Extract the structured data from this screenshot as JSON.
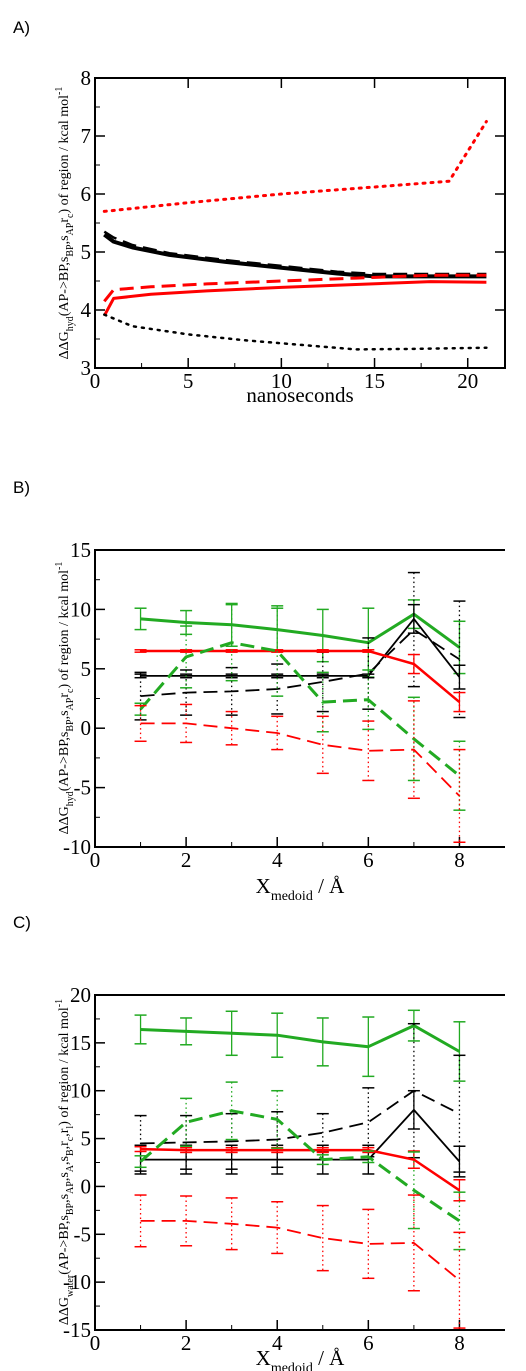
{
  "panels": [
    {
      "label": "A)"
    },
    {
      "label": "B)"
    },
    {
      "label": "C)"
    }
  ],
  "chart_data": [
    {
      "type": "line",
      "panel": "A)",
      "ylabel_parts": [
        {
          "t": "ΔΔG"
        },
        {
          "t": "hyd",
          "sub": true
        },
        {
          "t": "(AP->BP,s"
        },
        {
          "t": "BP",
          "sub": true
        },
        {
          "t": ",s"
        },
        {
          "t": "AP",
          "sub": true
        },
        {
          "t": "r"
        },
        {
          "t": "c",
          "sub": true
        },
        {
          "t": ") of region / kcal mol"
        },
        {
          "t": "-1",
          "sup": true
        }
      ],
      "xlabel_parts": [
        {
          "t": "nanoseconds"
        }
      ],
      "xlim": [
        0,
        22
      ],
      "ylim": [
        3,
        8
      ],
      "xticks": [
        0,
        5,
        10,
        15,
        20
      ],
      "yticks": [
        3,
        4,
        5,
        6,
        7,
        8
      ],
      "series": [
        {
          "color": "#ff0000",
          "dash": "dot",
          "width": 3,
          "x": [
            0.5,
            5,
            10,
            15,
            19,
            21
          ],
          "y": [
            5.7,
            5.85,
            6.0,
            6.12,
            6.22,
            7.25
          ]
        },
        {
          "color": "#000000",
          "dash": "solid",
          "width": 4,
          "x": [
            0.5,
            1,
            2,
            4,
            7,
            10,
            13,
            15,
            18,
            21
          ],
          "y": [
            5.3,
            5.18,
            5.08,
            4.95,
            4.83,
            4.73,
            4.63,
            4.58,
            4.58,
            4.58
          ]
        },
        {
          "color": "#000000",
          "dash": "dash",
          "width": 2.5,
          "x": [
            0.5,
            1,
            2,
            4,
            7,
            10,
            13,
            15,
            18,
            21
          ],
          "y": [
            5.35,
            5.25,
            5.12,
            4.98,
            4.86,
            4.76,
            4.66,
            4.62,
            4.62,
            4.62
          ]
        },
        {
          "color": "#ff0000",
          "dash": "dash",
          "width": 3,
          "x": [
            0.5,
            1,
            3,
            6,
            10,
            14,
            18,
            21
          ],
          "y": [
            4.15,
            4.35,
            4.4,
            4.45,
            4.5,
            4.55,
            4.6,
            4.6
          ]
        },
        {
          "color": "#ff0000",
          "dash": "solid",
          "width": 3,
          "x": [
            0.5,
            1,
            3,
            6,
            10,
            14,
            18,
            21
          ],
          "y": [
            3.9,
            4.2,
            4.27,
            4.33,
            4.39,
            4.44,
            4.49,
            4.48
          ]
        },
        {
          "color": "#000000",
          "dash": "dot",
          "width": 2.5,
          "x": [
            0.5,
            2,
            5,
            8,
            11,
            14,
            17,
            21
          ],
          "y": [
            3.92,
            3.72,
            3.58,
            3.48,
            3.4,
            3.32,
            3.33,
            3.35
          ]
        }
      ]
    },
    {
      "type": "line",
      "panel": "B)",
      "ylabel_parts": [
        {
          "t": "ΔΔG"
        },
        {
          "t": "hyd",
          "sub": true
        },
        {
          "t": "(AP->BP,s"
        },
        {
          "t": "BP",
          "sub": true
        },
        {
          "t": ",s"
        },
        {
          "t": "AP",
          "sub": true
        },
        {
          "t": "r"
        },
        {
          "t": "c",
          "sub": true
        },
        {
          "t": ") of region / kcal mol"
        },
        {
          "t": "-1",
          "sup": true
        }
      ],
      "xlabel_parts": [
        {
          "t": "X"
        },
        {
          "t": "medoid",
          "sub": true
        },
        {
          "t": " / Å"
        }
      ],
      "xlim": [
        0,
        9
      ],
      "ylim": [
        -10,
        15
      ],
      "xticks": [
        0,
        2,
        4,
        6,
        8
      ],
      "yticks": [
        -10,
        -5,
        0,
        5,
        10,
        15
      ],
      "series": [
        {
          "color": "#22aa22",
          "dash": "solid",
          "width": 3,
          "x": [
            1,
            2,
            3,
            4,
            5,
            6,
            7,
            8
          ],
          "y": [
            9.2,
            8.9,
            8.7,
            8.3,
            7.8,
            7.2,
            9.6,
            6.8
          ],
          "err": [
            0.9,
            1.0,
            1.8,
            1.8,
            2.2,
            2.9,
            1.2,
            2.2
          ],
          "err_dash": "solid"
        },
        {
          "color": "#000000",
          "dash": "solid",
          "width": 1.8,
          "x": [
            1,
            2,
            3,
            4,
            5,
            6,
            7,
            8
          ],
          "y": [
            4.4,
            4.4,
            4.4,
            4.4,
            4.4,
            4.4,
            9.2,
            4.3
          ],
          "err": [
            0.15,
            0.15,
            0.15,
            0.15,
            0.15,
            0.15,
            1.2,
            1.0
          ],
          "err_dash": "solid"
        },
        {
          "color": "#000000",
          "dash": "dash",
          "width": 1.8,
          "x": [
            1,
            2,
            3,
            4,
            5,
            6,
            7,
            8
          ],
          "y": [
            2.7,
            3.0,
            3.1,
            3.3,
            3.9,
            4.6,
            8.3,
            5.8
          ],
          "err": [
            2.0,
            1.9,
            2.0,
            2.1,
            2.5,
            3.0,
            4.8,
            4.9
          ],
          "err_dash": "dot"
        },
        {
          "color": "#ff0000",
          "dash": "solid",
          "width": 2.5,
          "x": [
            1,
            2,
            3,
            4,
            5,
            6,
            7,
            8
          ],
          "y": [
            6.5,
            6.5,
            6.5,
            6.5,
            6.5,
            6.5,
            5.4,
            2.2
          ],
          "err": [
            0.1,
            0.1,
            0.1,
            0.1,
            0.1,
            0.1,
            0.8,
            0.8
          ],
          "err_dash": "solid"
        },
        {
          "color": "#22aa22",
          "dash": "dash",
          "width": 3,
          "x": [
            1,
            2,
            3,
            4,
            5,
            6,
            7,
            8
          ],
          "y": [
            1.6,
            6.0,
            7.2,
            6.5,
            2.2,
            2.4,
            -0.9,
            -4.0
          ],
          "err": [
            0.5,
            2.6,
            3.2,
            3.8,
            2.5,
            2.5,
            3.5,
            2.9
          ],
          "err_dash": "dot"
        },
        {
          "color": "#ff0000",
          "dash": "dash",
          "width": 1.8,
          "x": [
            1,
            2,
            3,
            4,
            5,
            6,
            7,
            8
          ],
          "y": [
            0.4,
            0.4,
            0.0,
            -0.4,
            -1.4,
            -1.9,
            -1.8,
            -5.7
          ],
          "err": [
            1.5,
            1.6,
            1.4,
            1.4,
            2.4,
            2.5,
            4.1,
            3.9
          ],
          "err_dash": "dot"
        }
      ]
    },
    {
      "type": "line",
      "panel": "C)",
      "ylabel_parts": [
        {
          "t": "ΔΔG"
        },
        {
          "t": "water",
          "sub": true
        },
        {
          "t": "(AP->BP,s"
        },
        {
          "t": "BP",
          "sub": true
        },
        {
          "t": ",s"
        },
        {
          "t": "AP",
          "sub": true
        },
        {
          "t": ",s"
        },
        {
          "t": "A",
          "sub": true
        },
        {
          "t": ",s"
        },
        {
          "t": "B",
          "sub": true
        },
        {
          "t": ",r"
        },
        {
          "t": "c",
          "sub": true
        },
        {
          "t": ",r"
        },
        {
          "t": "l",
          "sub": true
        },
        {
          "t": ") of region / kcal mol"
        },
        {
          "t": "-1",
          "sup": true
        }
      ],
      "xlabel_parts": [
        {
          "t": "X"
        },
        {
          "t": "medoid",
          "sub": true
        },
        {
          "t": " / Å"
        }
      ],
      "xlim": [
        0,
        9
      ],
      "ylim": [
        -15,
        20
      ],
      "xticks": [
        0,
        2,
        4,
        6,
        8
      ],
      "yticks": [
        -15,
        -10,
        -5,
        0,
        5,
        10,
        15,
        20
      ],
      "series": [
        {
          "color": "#22aa22",
          "dash": "solid",
          "width": 3,
          "x": [
            1,
            2,
            3,
            4,
            5,
            6,
            7,
            8
          ],
          "y": [
            16.4,
            16.2,
            16.0,
            15.8,
            15.1,
            14.6,
            16.8,
            14.1
          ],
          "err": [
            1.5,
            1.4,
            2.3,
            2.3,
            2.5,
            3.1,
            1.6,
            3.1
          ],
          "err_dash": "solid"
        },
        {
          "color": "#000000",
          "dash": "dash",
          "width": 1.8,
          "x": [
            1,
            2,
            3,
            4,
            5,
            6,
            7,
            8
          ],
          "y": [
            4.5,
            4.6,
            4.7,
            4.9,
            5.6,
            6.7,
            10.0,
            7.6
          ],
          "err": [
            2.9,
            2.8,
            2.9,
            2.9,
            2.0,
            3.6,
            7.0,
            6.1
          ],
          "err_dash": "dot"
        },
        {
          "color": "#000000",
          "dash": "solid",
          "width": 1.8,
          "x": [
            1,
            2,
            3,
            4,
            5,
            6,
            7,
            8
          ],
          "y": [
            2.8,
            2.8,
            2.8,
            2.8,
            2.8,
            2.8,
            8.0,
            2.6
          ],
          "err": [
            1.5,
            1.5,
            1.5,
            1.5,
            1.5,
            1.5,
            2.0,
            1.6
          ],
          "err_dash": "solid"
        },
        {
          "color": "#ff0000",
          "dash": "solid",
          "width": 2.5,
          "x": [
            1,
            2,
            3,
            4,
            5,
            6,
            7,
            8
          ],
          "y": [
            3.9,
            3.8,
            3.8,
            3.8,
            3.8,
            3.8,
            2.8,
            -0.4
          ],
          "err": [
            0.25,
            0.25,
            0.25,
            0.25,
            0.25,
            0.25,
            0.9,
            1.1
          ],
          "err_dash": "solid"
        },
        {
          "color": "#22aa22",
          "dash": "dash",
          "width": 3,
          "x": [
            1,
            2,
            3,
            4,
            5,
            6,
            7,
            8
          ],
          "y": [
            2.6,
            6.7,
            7.9,
            7.0,
            2.8,
            3.1,
            -0.4,
            -3.6
          ],
          "err": [
            0.6,
            2.5,
            3.0,
            3.0,
            0.5,
            0.6,
            4.0,
            3.0
          ],
          "err_dash": "dot"
        },
        {
          "color": "#ff0000",
          "dash": "dash",
          "width": 1.8,
          "x": [
            1,
            2,
            3,
            4,
            5,
            6,
            7,
            8
          ],
          "y": [
            -3.6,
            -3.6,
            -3.9,
            -4.3,
            -5.4,
            -6.0,
            -5.9,
            -9.8
          ],
          "err": [
            2.7,
            2.6,
            2.7,
            2.7,
            3.4,
            3.6,
            5.0,
            5.0
          ],
          "err_dash": "dot"
        }
      ]
    }
  ]
}
